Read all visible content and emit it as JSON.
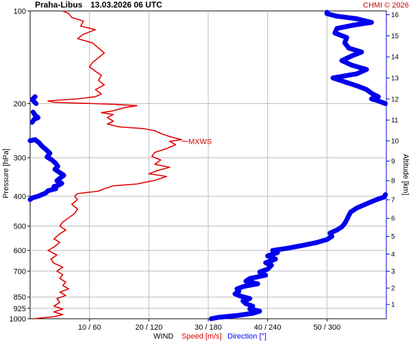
{
  "header": {
    "station": "Praha-Libus",
    "datetime": "13.03.2026 06 UTC",
    "credit": "CHMI © 2026"
  },
  "chart_data": {
    "type": "line",
    "ylabel_left": "Pressure [hPa]",
    "ylabel_right": "Altitude [km]",
    "xlabel_prefix": "WIND",
    "xlabel_speed": "Speed [m/s]",
    "xlabel_direction": "Direction [°]",
    "pressure_ticks": [
      "100",
      "200",
      "300",
      "400",
      "500",
      "600",
      "700",
      "850",
      "925",
      "1000"
    ],
    "x_ticks": [
      "10 / 60",
      "20 / 120",
      "30 / 180",
      "40 / 240",
      "50 / 300"
    ],
    "altitude_ticks": [
      "1",
      "2",
      "3",
      "4",
      "5",
      "6",
      "7",
      "8",
      "9",
      "10",
      "11",
      "12",
      "13",
      "14",
      "15",
      "16"
    ],
    "speed_range_ms": [
      0,
      60
    ],
    "direction_range_deg": [
      0,
      360
    ],
    "pressure_scale": "log",
    "pressure_range_hpa": [
      100,
      1000
    ],
    "grid": true,
    "annotation": "MXWS",
    "annotation_at": {
      "speed_ms": 25.5,
      "pressure_hpa": 265
    },
    "colors": {
      "speed": "#e00000",
      "direction": "#0000ee",
      "grid": "#bbbbbb",
      "alt_axis": "#0000cc"
    },
    "series": [
      {
        "name": "Speed [m/s]",
        "points": [
          [
            0.5,
            1000
          ],
          [
            4.0,
            985
          ],
          [
            5.5,
            970
          ],
          [
            4.0,
            950
          ],
          [
            5.5,
            930
          ],
          [
            4.0,
            910
          ],
          [
            5.0,
            885
          ],
          [
            4.5,
            860
          ],
          [
            6.0,
            840
          ],
          [
            5.0,
            820
          ],
          [
            6.5,
            800
          ],
          [
            5.5,
            780
          ],
          [
            6.0,
            760
          ],
          [
            5.0,
            740
          ],
          [
            5.5,
            720
          ],
          [
            4.5,
            700
          ],
          [
            5.5,
            680
          ],
          [
            4.0,
            660
          ],
          [
            3.5,
            640
          ],
          [
            4.5,
            620
          ],
          [
            3.0,
            600
          ],
          [
            4.0,
            585
          ],
          [
            5.0,
            565
          ],
          [
            4.0,
            550
          ],
          [
            5.0,
            530
          ],
          [
            6.0,
            515
          ],
          [
            5.0,
            500
          ],
          [
            5.5,
            485
          ],
          [
            6.5,
            470
          ],
          [
            7.5,
            455
          ],
          [
            8.0,
            440
          ],
          [
            7.0,
            425
          ],
          [
            8.0,
            410
          ],
          [
            7.5,
            400
          ],
          [
            8.0,
            392
          ],
          [
            10.0,
            388
          ],
          [
            11.5,
            385
          ],
          [
            12.5,
            378
          ],
          [
            14.0,
            370
          ],
          [
            18.0,
            365
          ],
          [
            19.5,
            360
          ],
          [
            21.0,
            355
          ],
          [
            23.0,
            345
          ],
          [
            20.0,
            338
          ],
          [
            21.5,
            330
          ],
          [
            23.5,
            322
          ],
          [
            21.0,
            315
          ],
          [
            22.0,
            305
          ],
          [
            20.5,
            297
          ],
          [
            21.0,
            288
          ],
          [
            23.0,
            280
          ],
          [
            24.5,
            272
          ],
          [
            23.5,
            265
          ],
          [
            25.5,
            262
          ],
          [
            23.5,
            256
          ],
          [
            22.0,
            250
          ],
          [
            21.0,
            245
          ],
          [
            19.0,
            241
          ],
          [
            15.0,
            238
          ],
          [
            13.0,
            233
          ],
          [
            14.0,
            228
          ],
          [
            13.0,
            222
          ],
          [
            14.0,
            217
          ],
          [
            12.0,
            214
          ],
          [
            14.0,
            211
          ],
          [
            16.0,
            206
          ],
          [
            18.0,
            203
          ],
          [
            14.0,
            201
          ],
          [
            4.0,
            198
          ],
          [
            3.0,
            196
          ],
          [
            8.0,
            193
          ],
          [
            11.0,
            190
          ],
          [
            12.0,
            186
          ],
          [
            11.0,
            180
          ],
          [
            12.5,
            174
          ],
          [
            11.5,
            168
          ],
          [
            12.0,
            162
          ],
          [
            11.0,
            157
          ],
          [
            10.0,
            152
          ],
          [
            10.5,
            147
          ],
          [
            11.5,
            142
          ],
          [
            12.5,
            137
          ],
          [
            11.5,
            132
          ],
          [
            10.5,
            127
          ],
          [
            8.0,
            123
          ],
          [
            9.0,
            119
          ],
          [
            11.0,
            115
          ],
          [
            8.5,
            112
          ],
          [
            9.0,
            108
          ],
          [
            7.0,
            105
          ],
          [
            6.5,
            102
          ],
          [
            5.5,
            100
          ]
        ]
      },
      {
        "name": "Direction [°]",
        "points": [
          [
            183,
            1000
          ],
          [
            190,
            990
          ],
          [
            210,
            975
          ],
          [
            225,
            960
          ],
          [
            232,
            945
          ],
          [
            222,
            930
          ],
          [
            225,
            910
          ],
          [
            218,
            893
          ],
          [
            215,
            875
          ],
          [
            222,
            860
          ],
          [
            212,
            843
          ],
          [
            207,
            830
          ],
          [
            211,
            815
          ],
          [
            209,
            800
          ],
          [
            216,
            785
          ],
          [
            230,
            770
          ],
          [
            218,
            755
          ],
          [
            222,
            740
          ],
          [
            238,
            722
          ],
          [
            232,
            705
          ],
          [
            240,
            690
          ],
          [
            244,
            670
          ],
          [
            238,
            658
          ],
          [
            248,
            640
          ],
          [
            240,
            625
          ],
          [
            250,
            610
          ],
          [
            245,
            600
          ],
          [
            260,
            590
          ],
          [
            275,
            578
          ],
          [
            290,
            565
          ],
          [
            300,
            553
          ],
          [
            305,
            540
          ],
          [
            303,
            527
          ],
          [
            310,
            515
          ],
          [
            315,
            503
          ],
          [
            318,
            490
          ],
          [
            320,
            477
          ],
          [
            322,
            462
          ],
          [
            324,
            450
          ],
          [
            330,
            437
          ],
          [
            340,
            423
          ],
          [
            350,
            410
          ],
          [
            358,
            402
          ],
          [
            359,
            395
          ]
        ]
      },
      {
        "name": "Direction [°]",
        "points": [
          [
            359,
            200
          ],
          [
            352,
            196
          ],
          [
            345,
            193
          ],
          [
            352,
            190
          ],
          [
            346,
            186
          ],
          [
            340,
            180
          ],
          [
            330,
            175
          ],
          [
            318,
            170
          ],
          [
            306,
            165
          ],
          [
            330,
            160
          ],
          [
            340,
            155
          ],
          [
            325,
            150
          ],
          [
            315,
            145
          ],
          [
            325,
            140
          ],
          [
            335,
            136
          ],
          [
            322,
            132
          ],
          [
            318,
            127
          ],
          [
            320,
            122
          ],
          [
            308,
            118
          ],
          [
            310,
            114
          ],
          [
            328,
            111
          ],
          [
            345,
            109
          ],
          [
            330,
            106
          ],
          [
            310,
            104
          ],
          [
            300,
            102
          ],
          [
            300,
            101
          ]
        ]
      }
    ],
    "direction_fragments_left": [
      [
        [
          6,
          200
        ],
        [
          2,
          194
        ],
        [
          5,
          190
        ]
      ],
      [
        [
          2,
          230
        ],
        [
          4,
          225
        ],
        [
          8,
          222
        ],
        [
          5,
          218
        ],
        [
          3,
          213
        ]
      ],
      [
        [
          0,
          264
        ],
        [
          5,
          262
        ],
        [
          9,
          268
        ],
        [
          12,
          275
        ],
        [
          16,
          282
        ],
        [
          20,
          290
        ],
        [
          17,
          298
        ],
        [
          22,
          305
        ],
        [
          26,
          313
        ],
        [
          28,
          320
        ],
        [
          25,
          327
        ],
        [
          30,
          335
        ],
        [
          34,
          342
        ],
        [
          30,
          350
        ],
        [
          27,
          356
        ],
        [
          32,
          363
        ],
        [
          29,
          368
        ],
        [
          24,
          372
        ],
        [
          26,
          378
        ],
        [
          18,
          384
        ],
        [
          16,
          390
        ],
        [
          12,
          395
        ],
        [
          8,
          400
        ],
        [
          2,
          405
        ],
        [
          0,
          410
        ]
      ]
    ]
  }
}
